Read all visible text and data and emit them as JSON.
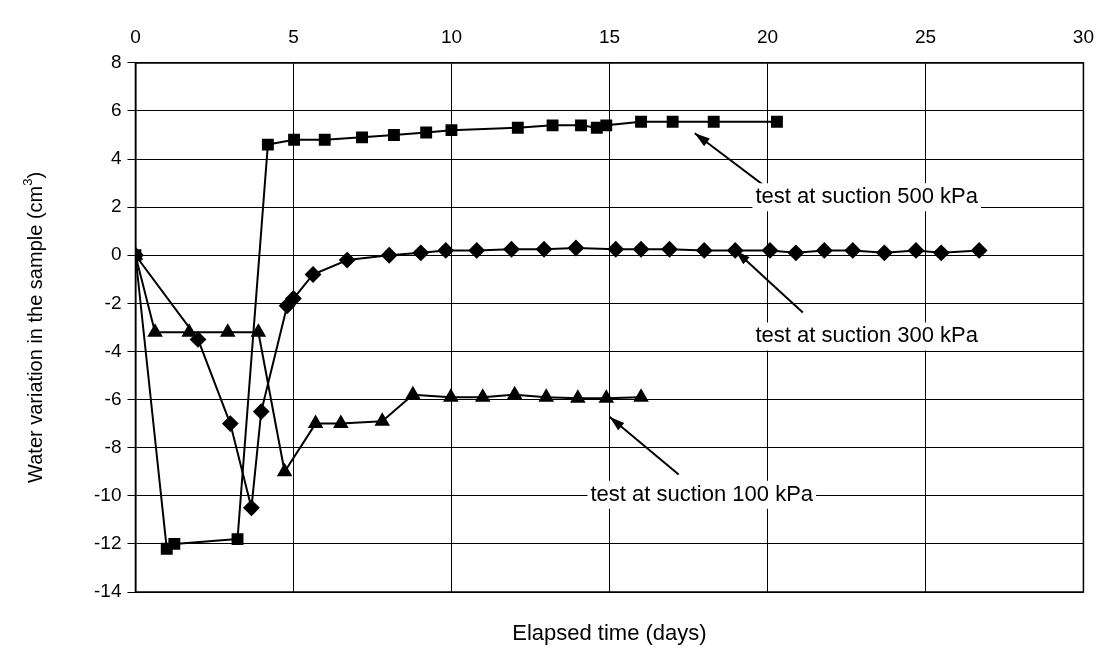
{
  "chart_data": {
    "type": "line",
    "xlabel": "Elapsed time (days)",
    "ylabel": "Water variation in the sample (cm$^{3}$)",
    "xlim": [
      0,
      30
    ],
    "xticks": [
      0,
      5,
      10,
      15,
      20,
      25,
      30
    ],
    "ylim": [
      -14,
      8
    ],
    "yticks": [
      -14,
      -12,
      -10,
      -8,
      -6,
      -4,
      -2,
      0,
      2,
      4,
      6,
      8
    ],
    "grid": true,
    "legend": false,
    "line_style": "solid",
    "series": [
      {
        "color": "#000000",
        "marker": "square",
        "x": [
          0,
          0.99,
          1.23,
          3.23,
          4.19,
          5.02,
          5.99,
          7.17,
          8.18,
          9.2,
          10.0,
          12.1,
          13.2,
          14.1,
          14.6,
          14.9,
          16.0,
          17.0,
          18.3,
          20.3
        ],
        "values": [
          0,
          -12.2,
          -12.0,
          -11.8,
          4.6,
          4.8,
          4.8,
          4.9,
          5.0,
          5.1,
          5.2,
          5.3,
          5.4,
          5.4,
          5.3,
          5.4,
          5.55,
          5.55,
          5.55,
          5.55
        ]
      },
      {
        "color": "#000000",
        "marker": "diamond",
        "x": [
          0,
          1.98,
          3.0,
          3.67,
          3.98,
          4.8,
          5.0,
          5.62,
          6.7,
          8.03,
          9.03,
          9.82,
          10.8,
          11.9,
          12.93,
          13.94,
          15.2,
          16.0,
          16.9,
          18.0,
          18.98,
          20.08,
          20.9,
          21.8,
          22.7,
          23.7,
          24.7,
          25.5,
          26.7
        ],
        "values": [
          0,
          -3.5,
          -7.0,
          -10.5,
          -6.5,
          -2.1,
          -1.8,
          -0.8,
          -0.2,
          0,
          0.1,
          0.2,
          0.2,
          0.25,
          0.25,
          0.3,
          0.25,
          0.25,
          0.25,
          0.2,
          0.2,
          0.2,
          0.1,
          0.2,
          0.2,
          0.1,
          0.2,
          0.1,
          0.2
        ]
      },
      {
        "color": "#000000",
        "marker": "triangle",
        "x": [
          0,
          0.62,
          1.7,
          2.92,
          3.89,
          4.72,
          5.7,
          6.5,
          7.81,
          8.78,
          9.98,
          10.99,
          12.0,
          13.0,
          14.0,
          14.9,
          16.0
        ],
        "values": [
          0,
          -3.2,
          -3.2,
          -3.2,
          -3.2,
          -9.0,
          -7.0,
          -7.0,
          -6.9,
          -5.8,
          -5.9,
          -5.9,
          -5.8,
          -5.9,
          -5.95,
          -5.95,
          -5.9
        ]
      }
    ],
    "annotations": [
      "test at suction 500 kPa",
      {
        "text": "test at suction 300 kPa",
        "x": 18.98,
        "y": 0.2
      },
      "test at suction 100 kPa"
    ]
  }
}
